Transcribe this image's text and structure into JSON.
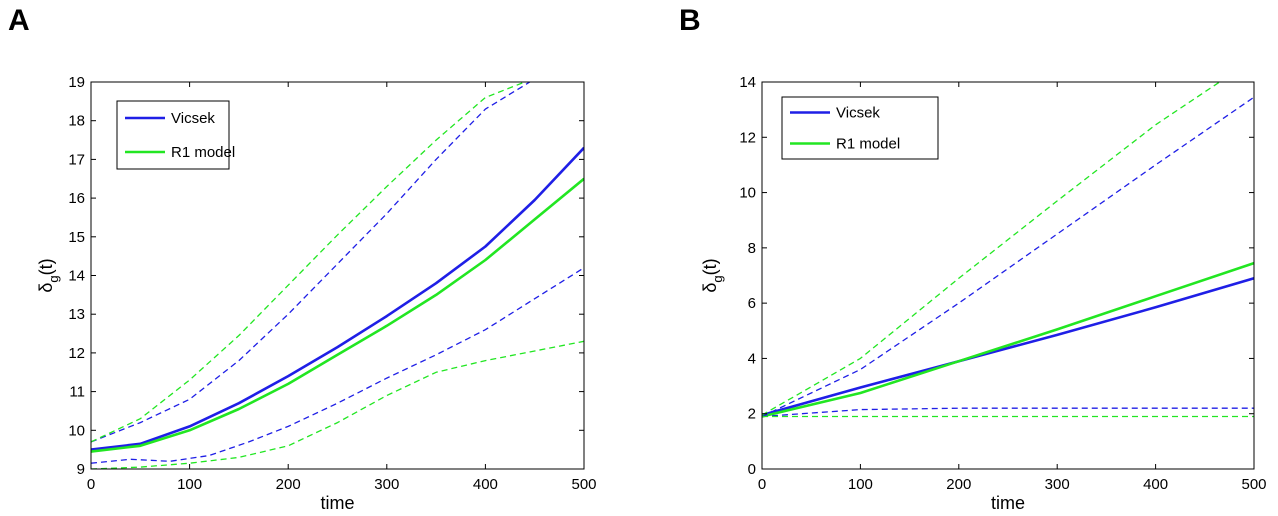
{
  "panel_labels": [
    "A",
    "B"
  ],
  "chart_data": [
    {
      "panel": "A",
      "type": "line",
      "xlabel": "time",
      "ylabel_main": "δ",
      "ylabel_sub": "g",
      "ylabel_tail": "(t)",
      "xlim": [
        0,
        500
      ],
      "ylim": [
        9,
        19
      ],
      "xticks": [
        0,
        100,
        200,
        300,
        400,
        500
      ],
      "yticks": [
        9,
        10,
        11,
        12,
        13,
        14,
        15,
        16,
        17,
        18,
        19
      ],
      "grid": false,
      "legend_position": "top-left",
      "legend": [
        "Vicsek",
        "R1 model"
      ],
      "colors": {
        "Vicsek": "#1f1fe6",
        "R1 model": "#22e622"
      },
      "series": [
        {
          "name": "Vicsek",
          "style": "solid",
          "x": [
            0,
            50,
            100,
            150,
            200,
            250,
            300,
            350,
            400,
            450,
            500
          ],
          "y": [
            9.5,
            9.65,
            10.1,
            10.7,
            11.4,
            12.15,
            12.95,
            13.8,
            14.75,
            15.95,
            17.3
          ]
        },
        {
          "name": "R1 model",
          "style": "solid",
          "x": [
            0,
            50,
            100,
            150,
            200,
            250,
            300,
            350,
            400,
            450,
            500
          ],
          "y": [
            9.45,
            9.6,
            10.0,
            10.55,
            11.2,
            11.95,
            12.7,
            13.5,
            14.4,
            15.45,
            16.5
          ]
        },
        {
          "name": "Vicsek",
          "style": "dashed",
          "x": [
            0,
            50,
            100,
            150,
            200,
            250,
            300,
            350,
            400,
            445
          ],
          "y": [
            9.7,
            10.2,
            10.8,
            11.8,
            13.0,
            14.3,
            15.6,
            17.0,
            18.3,
            19.0
          ]
        },
        {
          "name": "Vicsek",
          "style": "dashed",
          "x": [
            0,
            40,
            80,
            120,
            160,
            200,
            250,
            300,
            350,
            400,
            450,
            500
          ],
          "y": [
            9.15,
            9.25,
            9.2,
            9.35,
            9.7,
            10.1,
            10.7,
            11.35,
            11.95,
            12.6,
            13.4,
            14.2
          ]
        },
        {
          "name": "R1 model",
          "style": "dashed",
          "x": [
            0,
            50,
            100,
            150,
            200,
            250,
            300,
            350,
            400,
            440
          ],
          "y": [
            9.7,
            10.3,
            11.3,
            12.45,
            13.75,
            15.05,
            16.3,
            17.5,
            18.6,
            19.0
          ]
        },
        {
          "name": "R1 model",
          "style": "dashed",
          "x": [
            0,
            50,
            100,
            150,
            200,
            250,
            300,
            350,
            400,
            450,
            500
          ],
          "y": [
            9.0,
            9.05,
            9.15,
            9.3,
            9.6,
            10.2,
            10.9,
            11.5,
            11.8,
            12.05,
            12.3
          ]
        }
      ]
    },
    {
      "panel": "B",
      "type": "line",
      "xlabel": "time",
      "ylabel_main": "δ",
      "ylabel_sub": "g",
      "ylabel_tail": "(t)",
      "xlim": [
        0,
        500
      ],
      "ylim": [
        0,
        14
      ],
      "xticks": [
        0,
        100,
        200,
        300,
        400,
        500
      ],
      "yticks": [
        0,
        2,
        4,
        6,
        8,
        10,
        12,
        14
      ],
      "grid": false,
      "legend_position": "top-left",
      "legend": [
        "Vicsek",
        "R1 model"
      ],
      "colors": {
        "Vicsek": "#1f1fe6",
        "R1 model": "#22e622"
      },
      "series": [
        {
          "name": "Vicsek",
          "style": "solid",
          "x": [
            0,
            100,
            200,
            300,
            400,
            500
          ],
          "y": [
            1.95,
            2.95,
            3.9,
            4.85,
            5.85,
            6.9
          ]
        },
        {
          "name": "R1 model",
          "style": "solid",
          "x": [
            0,
            100,
            200,
            300,
            400,
            500
          ],
          "y": [
            1.9,
            2.75,
            3.9,
            5.05,
            6.25,
            7.45
          ]
        },
        {
          "name": "Vicsek",
          "style": "dashed",
          "x": [
            0,
            100,
            200,
            300,
            400,
            500
          ],
          "y": [
            1.9,
            3.6,
            6.0,
            8.5,
            11.0,
            13.45
          ]
        },
        {
          "name": "Vicsek",
          "style": "dashed",
          "x": [
            0,
            100,
            200,
            300,
            400,
            500
          ],
          "y": [
            1.9,
            2.15,
            2.2,
            2.2,
            2.2,
            2.2
          ]
        },
        {
          "name": "R1 model",
          "style": "dashed",
          "x": [
            0,
            100,
            200,
            300,
            400,
            465
          ],
          "y": [
            1.95,
            4.0,
            6.9,
            9.7,
            12.45,
            14.0
          ]
        },
        {
          "name": "R1 model",
          "style": "dashed",
          "x": [
            0,
            100,
            200,
            300,
            400,
            500
          ],
          "y": [
            1.9,
            1.9,
            1.9,
            1.9,
            1.9,
            1.9
          ]
        }
      ]
    }
  ]
}
